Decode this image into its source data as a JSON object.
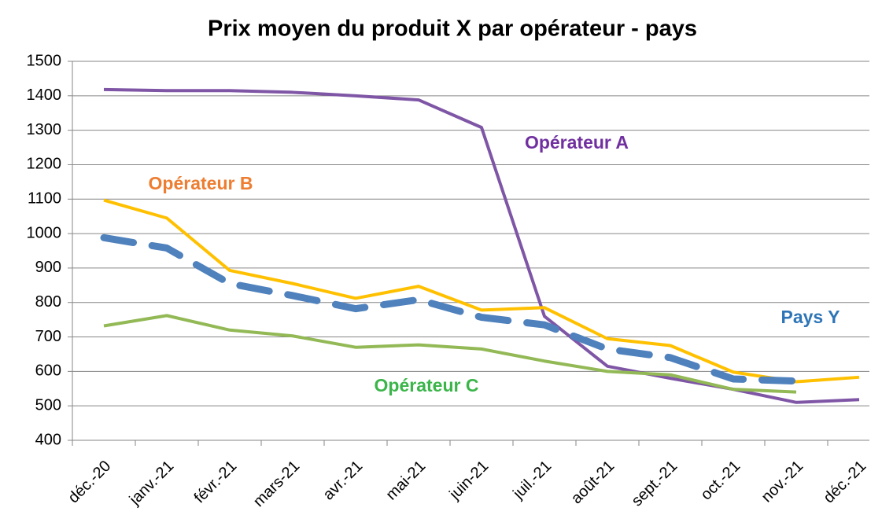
{
  "chart_data": {
    "type": "line",
    "title": "Prix moyen du produit X par opérateur - pays",
    "categories": [
      "déc.-20",
      "janv.-21",
      "févr.-21",
      "mars-21",
      "avr.-21",
      "mai-21",
      "juin-21",
      "juil.-21",
      "août-21",
      "sept.-21",
      "oct.-21",
      "nov.-21",
      "déc.-21"
    ],
    "series": [
      {
        "name": "Opérateur A",
        "color": "#7f56a6",
        "label_color": "#7030a0",
        "values": [
          1418,
          1415,
          1415,
          1410,
          1400,
          1388,
          1308,
          760,
          615,
          580,
          548,
          510,
          518
        ]
      },
      {
        "name": "Opérateur B",
        "color": "#ffc000",
        "label_color": "#ed7d31",
        "values": [
          1097,
          1045,
          893,
          855,
          812,
          847,
          778,
          785,
          695,
          675,
          598,
          570,
          583
        ]
      },
      {
        "name": "Opérateur C",
        "color": "#92b955",
        "label_color": "#3bb54a",
        "values": [
          732,
          762,
          720,
          703,
          670,
          677,
          665,
          630,
          600,
          590,
          548,
          540,
          null
        ]
      },
      {
        "name": "Pays Y",
        "color": "#4f81bd",
        "label_color": "#2e75b6",
        "dashed": true,
        "values": [
          988,
          958,
          855,
          820,
          782,
          808,
          757,
          735,
          665,
          640,
          578,
          572,
          null
        ]
      }
    ],
    "ylim": [
      400,
      1500
    ],
    "yticks": [
      400,
      500,
      600,
      700,
      800,
      900,
      1000,
      1100,
      1200,
      1300,
      1400,
      1500
    ],
    "grid": true
  }
}
